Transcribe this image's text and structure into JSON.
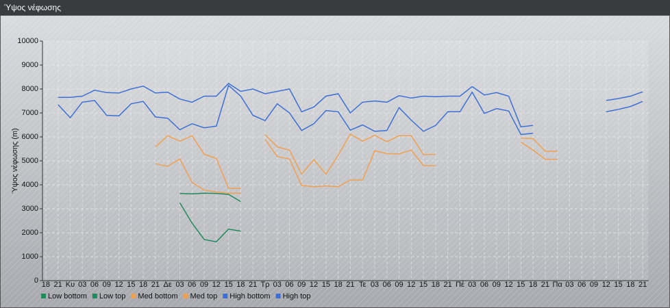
{
  "window_title": "Ύψος νέφωσης",
  "chart_data": {
    "type": "line",
    "y_label": "Ύψος νέφωσης (m)",
    "categories": [
      "18",
      "21",
      "Κυ",
      "03",
      "06",
      "09",
      "12",
      "15",
      "18",
      "21",
      "Δε",
      "03",
      "06",
      "09",
      "12",
      "15",
      "18",
      "21",
      "Τρ",
      "03",
      "06",
      "09",
      "12",
      "15",
      "18",
      "21",
      "Τε",
      "03",
      "06",
      "09",
      "12",
      "15",
      "18",
      "21",
      "Πέ",
      "03",
      "06",
      "09",
      "12",
      "15",
      "18",
      "21",
      "Πα",
      "03",
      "06",
      "09",
      "12",
      "15",
      "18",
      "21"
    ],
    "ylim": [
      0,
      10000
    ],
    "yticks": [
      0,
      1000,
      2000,
      3000,
      4000,
      5000,
      6000,
      7000,
      8000,
      9000,
      10000
    ],
    "grid": true,
    "series": [
      {
        "name": "Low bottom",
        "color": "#1f8a5c",
        "values": [
          null,
          null,
          null,
          null,
          null,
          null,
          null,
          null,
          null,
          null,
          null,
          3250,
          2400,
          1720,
          1620,
          2150,
          2070,
          null,
          null,
          null,
          null,
          null,
          null,
          null,
          null,
          null,
          null,
          null,
          null,
          null,
          null,
          null,
          null,
          null,
          null,
          null,
          null,
          null,
          null,
          null,
          null,
          null,
          null,
          null,
          null,
          null,
          null,
          null,
          null,
          null
        ]
      },
      {
        "name": "Low top",
        "color": "#1f8a5c",
        "values": [
          null,
          null,
          null,
          null,
          null,
          null,
          null,
          null,
          null,
          null,
          null,
          3640,
          3620,
          3650,
          3640,
          3600,
          3300,
          null,
          null,
          null,
          null,
          null,
          null,
          null,
          null,
          null,
          null,
          null,
          null,
          null,
          null,
          null,
          null,
          null,
          null,
          null,
          null,
          null,
          null,
          null,
          null,
          null,
          null,
          null,
          null,
          null,
          null,
          null,
          null,
          null
        ]
      },
      {
        "name": "Med bottom",
        "color": "#f0a050",
        "values": [
          null,
          null,
          null,
          null,
          null,
          null,
          null,
          null,
          null,
          4880,
          4770,
          5080,
          4100,
          3780,
          3700,
          3650,
          3650,
          null,
          5900,
          5180,
          5080,
          3970,
          3920,
          3950,
          3920,
          4200,
          4200,
          5420,
          5300,
          5290,
          5450,
          4800,
          4800,
          null,
          null,
          null,
          null,
          null,
          null,
          5780,
          5450,
          5070,
          5070,
          null,
          null,
          null,
          null,
          null,
          null,
          null
        ]
      },
      {
        "name": "Med top",
        "color": "#f0a050",
        "values": [
          null,
          null,
          null,
          null,
          null,
          null,
          null,
          null,
          null,
          5580,
          6050,
          5820,
          6050,
          5280,
          5100,
          3850,
          3850,
          null,
          6100,
          5580,
          5450,
          4450,
          5050,
          4450,
          5230,
          6120,
          5820,
          6070,
          5800,
          6050,
          6050,
          5260,
          5270,
          null,
          null,
          null,
          null,
          null,
          null,
          5950,
          5930,
          5400,
          5400,
          null,
          null,
          null,
          null,
          null,
          null,
          null
        ]
      },
      {
        "name": "High bottom",
        "color": "#3b6fd6",
        "values": [
          null,
          7350,
          6800,
          7450,
          7520,
          6900,
          6880,
          7380,
          7480,
          6830,
          6780,
          6300,
          6550,
          6380,
          6450,
          8150,
          7700,
          6900,
          6680,
          7380,
          7000,
          6270,
          6550,
          7100,
          7050,
          6280,
          6500,
          6230,
          6270,
          7220,
          6700,
          6230,
          6480,
          7050,
          7050,
          7870,
          6980,
          7180,
          7080,
          6100,
          6150,
          null,
          null,
          null,
          null,
          null,
          7050,
          7150,
          7270,
          7480
        ]
      },
      {
        "name": "High top",
        "color": "#3b6fd6",
        "values": [
          null,
          7650,
          7650,
          7700,
          7950,
          7850,
          7830,
          8000,
          8120,
          7830,
          7870,
          7580,
          7450,
          7700,
          7700,
          8230,
          7900,
          8000,
          7800,
          7900,
          8000,
          7050,
          7250,
          7700,
          7800,
          7000,
          7450,
          7500,
          7450,
          7720,
          7620,
          7700,
          7680,
          7700,
          7700,
          8100,
          7750,
          7850,
          7700,
          6420,
          6480,
          null,
          null,
          null,
          null,
          null,
          7520,
          7600,
          7700,
          7880
        ]
      }
    ]
  }
}
